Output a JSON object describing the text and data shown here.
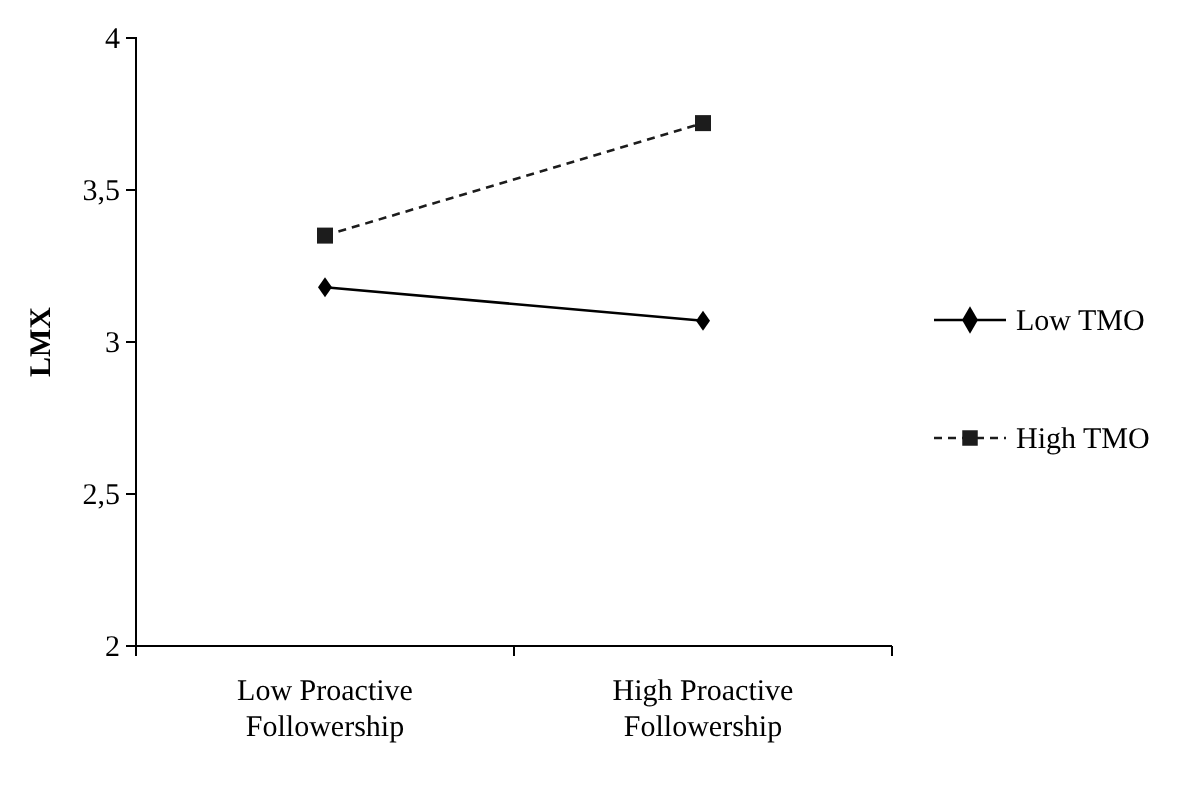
{
  "chart_data": {
    "type": "line",
    "ylabel": "LMX",
    "categories": [
      "Low Proactive Followership",
      "High Proactive Followership"
    ],
    "series": [
      {
        "name": "Low TMO",
        "color": "#000000",
        "marker": "diamond",
        "line_style": "solid",
        "values": [
          3.18,
          3.07
        ]
      },
      {
        "name": "High TMO",
        "color": "#1c1c1c",
        "marker": "square",
        "line_style": "dashed",
        "values": [
          3.35,
          3.72
        ]
      }
    ],
    "ylim": [
      2,
      4
    ],
    "yticks": [
      2,
      {
        "value": 2.5,
        "label": "2,5"
      },
      3,
      {
        "value": 3.5,
        "label": "3,5"
      },
      4
    ],
    "grid": false,
    "legend": "right"
  }
}
